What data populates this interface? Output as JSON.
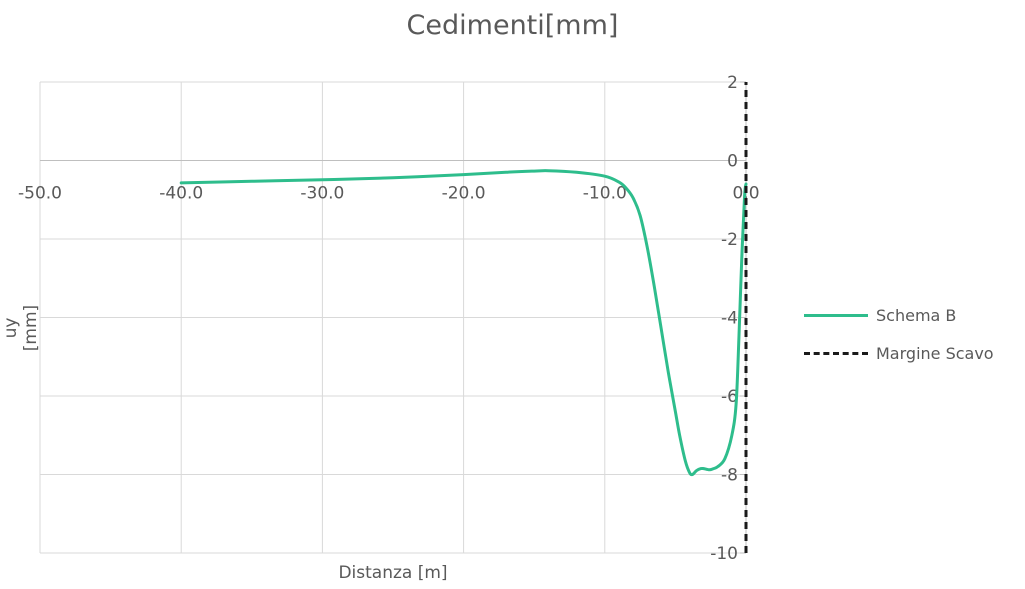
{
  "chart_data": {
    "type": "line",
    "title": "Cedimenti[mm]",
    "xlabel": "Distanza [m]",
    "ylabel": "uy [mm]",
    "xlim": [
      -50,
      0
    ],
    "ylim": [
      -10,
      2
    ],
    "x_ticks": [
      "-50.0",
      "-40.0",
      "-30.0",
      "-20.0",
      "-10.0",
      "0.0"
    ],
    "x_tick_values": [
      -50,
      -40,
      -30,
      -20,
      -10,
      0
    ],
    "y_ticks": [
      "2",
      "0",
      "-2",
      "-4",
      "-6",
      "-8",
      "-10"
    ],
    "y_tick_values": [
      2,
      0,
      -2,
      -4,
      -6,
      -8,
      -10
    ],
    "grid": true,
    "legend_position": "right",
    "series": [
      {
        "name": "Schema B",
        "color": "#2ebd8c",
        "dash": "solid",
        "x": [
          -40,
          -35,
          -30,
          -25,
          -20,
          -17,
          -15,
          -14,
          -12,
          -10,
          -9,
          -8.5,
          -8,
          -7.5,
          -7,
          -6.5,
          -6,
          -5.5,
          -5,
          -4.7,
          -4.3,
          -4,
          -3.8,
          -3.5,
          -3.2,
          -3,
          -2.6,
          -2.3,
          -2,
          -1.5,
          -1,
          -0.7,
          -0.5,
          -0.3,
          -0.1,
          0
        ],
        "y": [
          -0.57,
          -0.53,
          -0.49,
          -0.44,
          -0.36,
          -0.3,
          -0.27,
          -0.26,
          -0.3,
          -0.4,
          -0.55,
          -0.7,
          -0.95,
          -1.4,
          -2.2,
          -3.2,
          -4.3,
          -5.4,
          -6.4,
          -7.0,
          -7.65,
          -7.95,
          -8.0,
          -7.9,
          -7.85,
          -7.85,
          -7.88,
          -7.85,
          -7.8,
          -7.6,
          -7.0,
          -6.2,
          -4.5,
          -2.5,
          -0.9,
          -0.6
        ]
      },
      {
        "name": "Margine Scavo",
        "color": "#1a1a1a",
        "dash": "dashed",
        "x": [
          0,
          0
        ],
        "y": [
          -10,
          2
        ]
      }
    ]
  }
}
